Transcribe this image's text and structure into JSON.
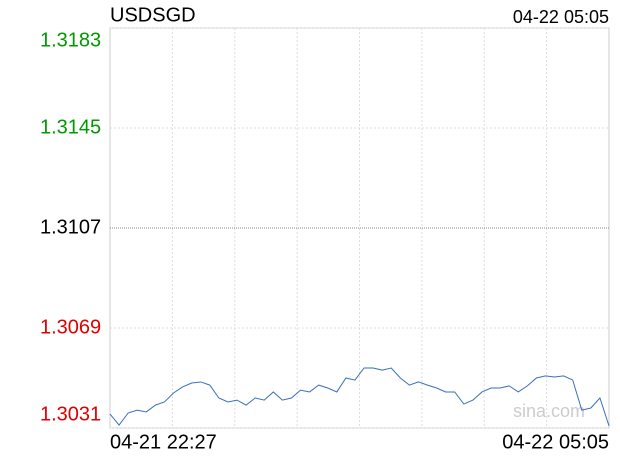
{
  "chart_data": {
    "type": "line",
    "title": "USDSGD",
    "timestamp": "04-22 05:05",
    "watermark": "sina.com",
    "xlabels": [
      "04-21 22:27",
      "04-22 05:05"
    ],
    "series": [
      {
        "name": "USDSGD",
        "color": "#3a6fbf",
        "values": [
          1.30363,
          1.30321,
          1.30367,
          1.30378,
          1.30371,
          1.30397,
          1.30409,
          1.30443,
          1.30466,
          1.30481,
          1.30485,
          1.30473,
          1.30424,
          1.30409,
          1.30416,
          1.30397,
          1.30424,
          1.30416,
          1.30447,
          1.30416,
          1.30424,
          1.30454,
          1.30447,
          1.30473,
          1.30462,
          1.30447,
          1.305,
          1.30492,
          1.30538,
          1.30538,
          1.3053,
          1.30538,
          1.305,
          1.30473,
          1.30485,
          1.30473,
          1.30462,
          1.30447,
          1.30447,
          1.30401,
          1.30416,
          1.30447,
          1.30462,
          1.30462,
          1.3047,
          1.30447,
          1.3047,
          1.305,
          1.30508,
          1.30504,
          1.30508,
          1.30492,
          1.30378,
          1.30386,
          1.30424,
          1.30318
        ]
      }
    ],
    "ylim": [
      1.3031,
      1.3183
    ],
    "yticks": [
      1.3031,
      1.3069,
      1.3107,
      1.3145,
      1.3183
    ],
    "up_color": "#009900",
    "down_color": "#e00000",
    "neutral_color": "#000000",
    "grid": true
  }
}
